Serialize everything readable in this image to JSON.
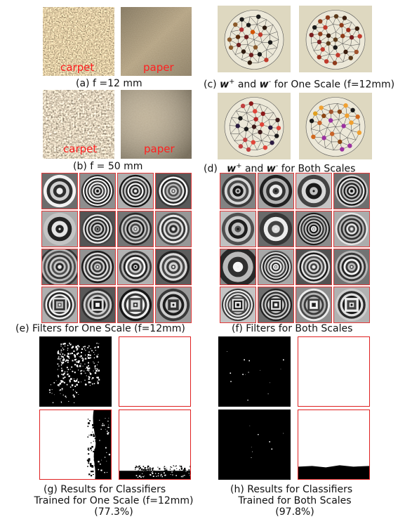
{
  "figure": {
    "panel_a": {
      "caption": "(a) f =12 mm",
      "labels": [
        "carpet",
        "paper"
      ]
    },
    "panel_b": {
      "caption": "(b) f = 50 mm",
      "labels": [
        "carpet",
        "paper"
      ]
    },
    "panel_c": {
      "prefix": "(c) ",
      "w_plus": "w",
      "sup_plus": "+",
      "and": " and ",
      "w_minus": "w",
      "sup_minus": "-",
      "suffix": " for One Scale (f=12mm)"
    },
    "panel_d": {
      "prefix": "(d)   ",
      "w_plus": "w",
      "sup_plus": "+",
      "and": " and ",
      "w_minus": "w",
      "sup_minus": "-",
      "suffix": " for Both Scales"
    },
    "panel_e": {
      "caption": "(e)  Filters for One Scale (f=12mm)"
    },
    "panel_f": {
      "caption": "(f) Filters for Both Scales"
    },
    "panel_g": {
      "line1": "(g)     Results for Classifiers",
      "line2": "Trained for One Scale (f=12mm)",
      "line3": "(77.3%)"
    },
    "panel_h": {
      "line1": "(h)  Results for Classifiers",
      "line2": "Trained for Both Scales",
      "line3": "(97.8%)"
    }
  },
  "colors": {
    "frame_red": "#e23a3a",
    "label_red": "#ff2020",
    "sphere_bg": "#ded8c0"
  }
}
